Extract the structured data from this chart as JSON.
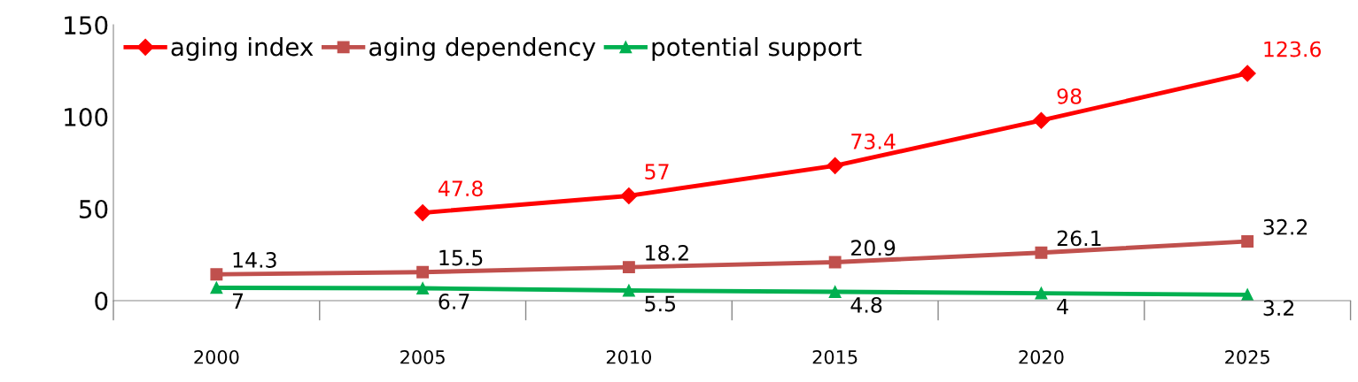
{
  "chart_data": {
    "type": "line",
    "categories": [
      "2000",
      "2005",
      "2010",
      "2015",
      "2020",
      "2025"
    ],
    "series": [
      {
        "name": "aging index",
        "color": "#ff0000",
        "marker": "diamond",
        "values": [
          null,
          47.8,
          57,
          73.4,
          98,
          123.6
        ]
      },
      {
        "name": "aging dependency",
        "color": "#c0504d",
        "marker": "square",
        "values": [
          14.3,
          15.5,
          18.2,
          20.9,
          26.1,
          32.2
        ]
      },
      {
        "name": "potential support",
        "color": "#00b050",
        "marker": "triangle",
        "values": [
          7,
          6.7,
          5.5,
          4.8,
          4,
          3.2
        ]
      }
    ],
    "ylim": [
      0,
      150
    ],
    "yticks": [
      0,
      50,
      100,
      150
    ],
    "grid": false,
    "legend": "top left",
    "data_labels": true,
    "line_style": "solid"
  }
}
